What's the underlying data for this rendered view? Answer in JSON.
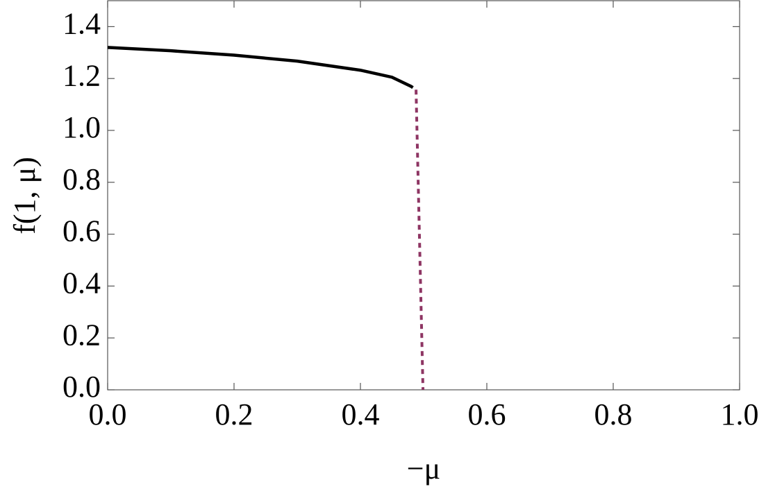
{
  "chart_data": {
    "type": "line",
    "xlabel": "−μ",
    "ylabel": "f(1, μ)",
    "series": [
      {
        "x": [
          0,
          0.1,
          0.2,
          0.3,
          0.4,
          0.45,
          0.48,
          0.483
        ],
        "values": [
          1.32,
          1.307,
          1.29,
          1.267,
          1.232,
          1.205,
          1.17,
          1.165
        ],
        "color": "#000000",
        "dashed": false
      },
      {
        "x": [
          0.488,
          0.499
        ],
        "values": [
          1.157,
          0
        ],
        "color": "#8e3563",
        "dashed": true
      }
    ],
    "xlim": [
      0,
      1
    ],
    "xticks": [
      {
        "value": 0,
        "label": "0.0"
      },
      0.2,
      0.4,
      0.6,
      0.8,
      {
        "value": 1,
        "label": "1.0"
      }
    ],
    "ylim": [
      0,
      1.5
    ],
    "yticks": [
      {
        "value": 0,
        "label": "0.0"
      },
      0.2,
      0.4,
      0.6,
      0.8,
      {
        "value": 1,
        "label": "1.0"
      },
      1.2,
      1.4
    ],
    "grid": false
  }
}
